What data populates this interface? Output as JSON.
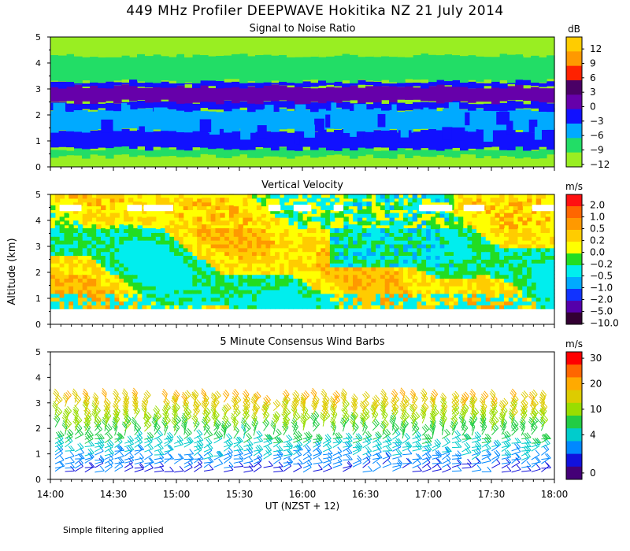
{
  "title": "449 MHz Profiler DEEPWAVE Hokitika NZ 21 July 2014",
  "y_axis_label": "Altitude (km)",
  "x_axis_label": "UT  (NZST + 12)",
  "footnote": "Simple filtering applied",
  "chart_data": [
    {
      "type": "heatmap",
      "title": "Signal to Noise Ratio",
      "unit": "dB",
      "x_ticks": [
        "14:00",
        "14:30",
        "15:00",
        "15:30",
        "16:00",
        "16:30",
        "17:00",
        "17:30",
        "18:00"
      ],
      "y_ticks": [
        "0",
        "1",
        "2",
        "3",
        "4",
        "5"
      ],
      "ylim": [
        0,
        5
      ],
      "xlim": [
        "14:00",
        "18:00"
      ],
      "colorbar": {
        "labels": [
          "12",
          "9",
          "6",
          "3",
          "0",
          "−3",
          "−6",
          "−9",
          "−12"
        ],
        "colors": [
          "#ffcc00",
          "#ff9900",
          "#ff2200",
          "#4a0066",
          "#6600aa",
          "#1111ff",
          "#00aaff",
          "#22dd66",
          "#99ee22"
        ]
      },
      "layers": [
        {
          "from_km": 0.0,
          "to_km": 0.4,
          "value": -12
        },
        {
          "from_km": 0.4,
          "to_km": 0.7,
          "value": -9
        },
        {
          "from_km": 0.7,
          "to_km": 1.4,
          "value": -3
        },
        {
          "from_km": 1.4,
          "to_km": 2.2,
          "value": -6
        },
        {
          "from_km": 2.2,
          "to_km": 2.5,
          "value": -3
        },
        {
          "from_km": 2.5,
          "to_km": 3.1,
          "value": 0
        },
        {
          "from_km": 3.1,
          "to_km": 3.3,
          "value": -3
        },
        {
          "from_km": 3.3,
          "to_km": 4.3,
          "value": -9
        },
        {
          "from_km": 4.3,
          "to_km": 5.0,
          "value": -12
        }
      ]
    },
    {
      "type": "heatmap",
      "title": "Vertical Velocity",
      "unit": "m/s",
      "x_ticks": [
        "14:00",
        "14:30",
        "15:00",
        "15:30",
        "16:00",
        "16:30",
        "17:00",
        "17:30",
        "18:00"
      ],
      "y_ticks": [
        "0",
        "1",
        "2",
        "3",
        "4",
        "5"
      ],
      "ylim": [
        0,
        5
      ],
      "xlim": [
        "14:00",
        "18:00"
      ],
      "colorbar": {
        "labels": [
          "2.0",
          "1.0",
          "0.5",
          "0.2",
          "0.0",
          "−0.2",
          "−0.5",
          "−1.0",
          "−2.0",
          "−5.0",
          "−10.0"
        ],
        "colors": [
          "#ff1111",
          "#ff6600",
          "#ff9900",
          "#ffcc00",
          "#ffff00",
          "#22dd22",
          "#00eeee",
          "#00aaff",
          "#1133ff",
          "#5500aa",
          "#330033"
        ]
      },
      "data_range_km": [
        0.6,
        5.0
      ],
      "dominant_values": [
        0.2,
        0.0,
        -0.2,
        -0.5
      ]
    },
    {
      "type": "scatter",
      "subtype": "wind-barbs",
      "title": "5 Minute Consensus Wind Barbs",
      "unit": "m/s",
      "x_ticks": [
        "14:00",
        "14:30",
        "15:00",
        "15:30",
        "16:00",
        "16:30",
        "17:00",
        "17:30",
        "18:00"
      ],
      "y_ticks": [
        "0",
        "1",
        "2",
        "3",
        "4",
        "5"
      ],
      "ylim": [
        0,
        5
      ],
      "xlim": [
        "14:00",
        "18:00"
      ],
      "colorbar": {
        "labels": [
          "30",
          "20",
          "10",
          "4",
          "0"
        ],
        "colors": [
          "#ff0000",
          "#ff6600",
          "#ffaa00",
          "#ddcc00",
          "#99dd00",
          "#22cc44",
          "#00cccc",
          "#0088ff",
          "#1111dd",
          "#440077"
        ]
      },
      "barb_altitude_range_km": [
        0.3,
        3.1
      ],
      "speed_by_altitude": [
        {
          "alt_km": 0.5,
          "speed": 2
        },
        {
          "alt_km": 1.0,
          "speed": 5
        },
        {
          "alt_km": 1.5,
          "speed": 8
        },
        {
          "alt_km": 2.0,
          "speed": 12
        },
        {
          "alt_km": 2.5,
          "speed": 16
        },
        {
          "alt_km": 3.0,
          "speed": 20
        }
      ]
    }
  ]
}
